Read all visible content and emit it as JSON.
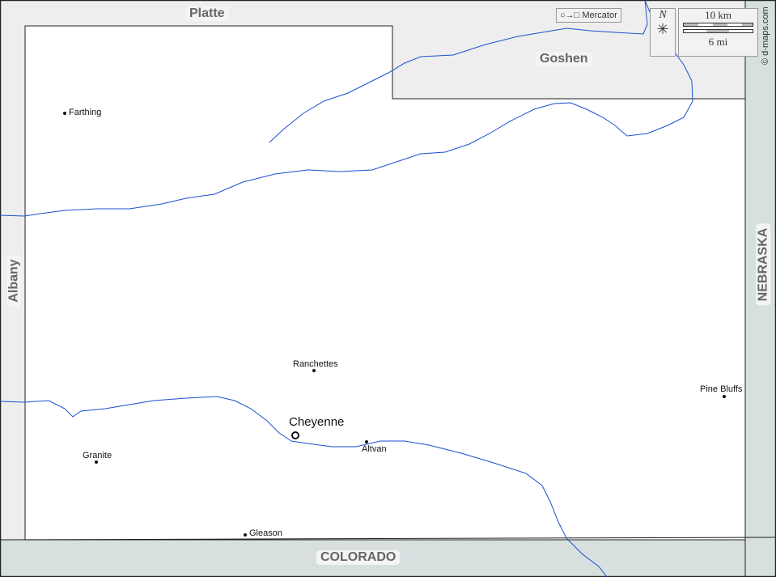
{
  "regions": {
    "platte": "Platte",
    "goshen": "Goshen",
    "albany": "Albany",
    "nebraska": "NEBRASKA",
    "colorado": "COLORADO"
  },
  "places": [
    {
      "name": "Farthing"
    },
    {
      "name": "Ranchettes"
    },
    {
      "name": "Pine Bluffs"
    },
    {
      "name": "Cheyenne"
    },
    {
      "name": "Altvan"
    },
    {
      "name": "Granite"
    },
    {
      "name": "Gleason"
    }
  ],
  "legend": {
    "projection": "Mercator",
    "north": "N",
    "scale_km": "10 km",
    "scale_mi": "6 mi"
  },
  "credit": "© d-maps.com",
  "colors": {
    "river": "#1a4fd0",
    "neighbor_county": "#eeeeee",
    "neighbor_state": "#d7dfdf"
  }
}
